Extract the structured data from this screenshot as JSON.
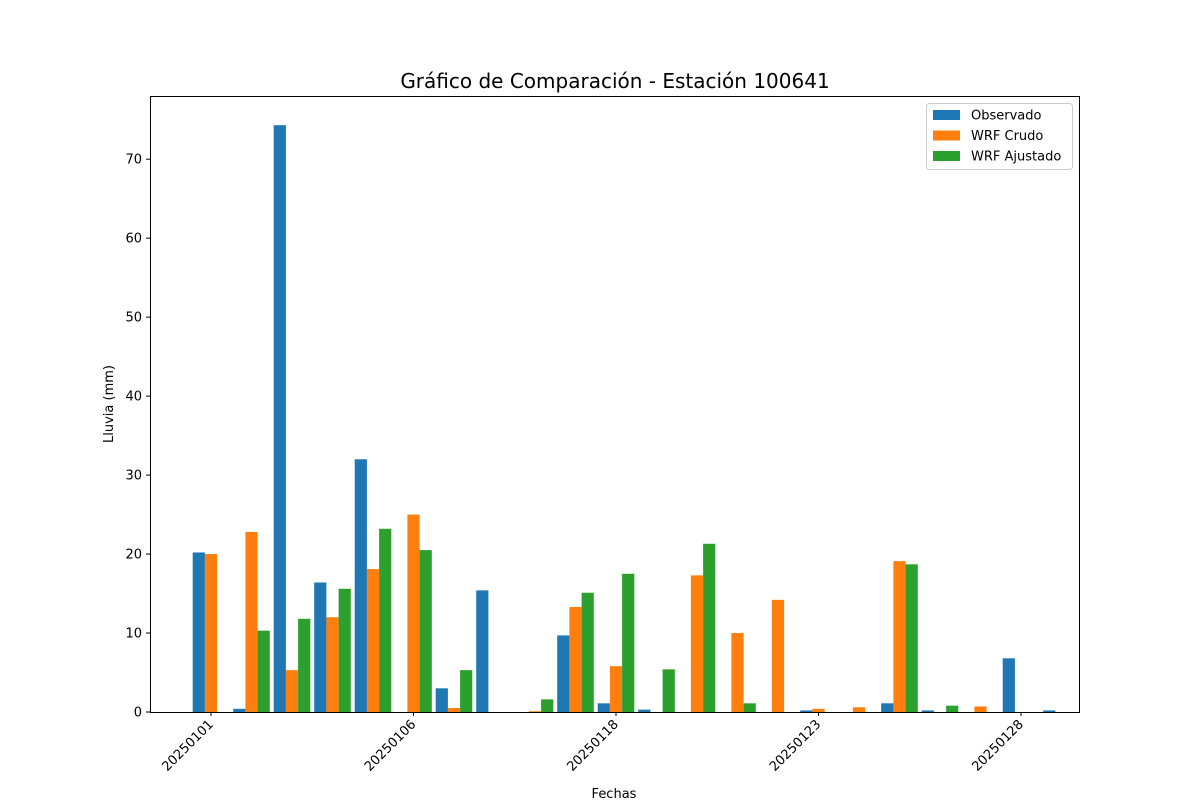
{
  "chart_data": {
    "type": "bar",
    "title": "Gráfico de Comparación - Estación 100641",
    "xlabel": "Fechas",
    "ylabel": "Lluvia (mm)",
    "ylim": [
      0,
      78
    ],
    "y_ticks": [
      0,
      10,
      20,
      30,
      40,
      50,
      60,
      70
    ],
    "x_tick_labels": [
      "20250101",
      "20250106",
      "20250118",
      "20250123",
      "20250128"
    ],
    "x_tick_positions": [
      0,
      5,
      10,
      15,
      20
    ],
    "legend_position": "top-right",
    "grid": false,
    "colors": {
      "Observado": "#1f77b4",
      "WRF Crudo": "#ff7f0e",
      "WRF Ajustado": "#2ca02c"
    },
    "series": [
      {
        "name": "Observado",
        "values": [
          20.2,
          0.4,
          74.3,
          16.4,
          32.0,
          0.0,
          3.0,
          15.4,
          0.0,
          9.7,
          1.1,
          0.3,
          0.0,
          0.0,
          0.0,
          0.2,
          0.0,
          1.1,
          0.2,
          0.0,
          6.8,
          0.2
        ]
      },
      {
        "name": "WRF Crudo",
        "values": [
          20.0,
          22.8,
          5.3,
          12.0,
          18.1,
          25.0,
          0.5,
          0.0,
          0.1,
          13.3,
          5.8,
          0.0,
          17.3,
          10.0,
          14.2,
          0.4,
          0.6,
          19.1,
          0.0,
          0.7,
          0.0,
          0.0
        ]
      },
      {
        "name": "WRF Ajustado",
        "values": [
          0.0,
          10.3,
          11.8,
          15.6,
          23.2,
          20.5,
          5.3,
          0.0,
          1.6,
          15.1,
          17.5,
          5.4,
          21.3,
          1.1,
          0.0,
          0.0,
          0.0,
          18.7,
          0.8,
          0.0,
          0.0,
          0.0
        ]
      }
    ]
  }
}
